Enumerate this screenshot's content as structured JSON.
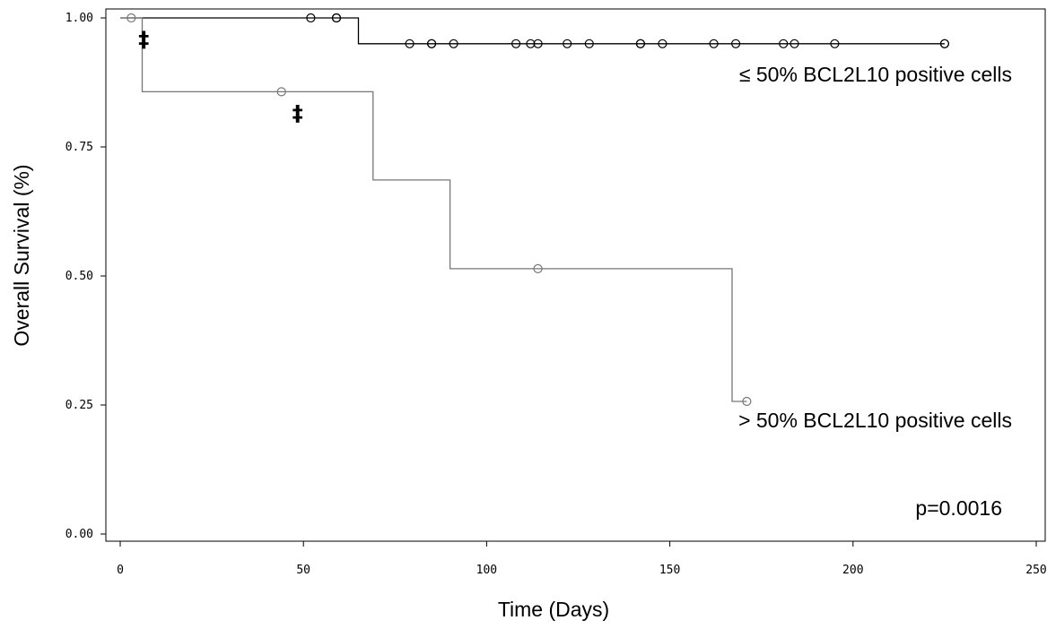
{
  "chart_data": {
    "type": "line",
    "subtype": "kaplan-meier",
    "xlabel": "Time (Days)",
    "ylabel": "Overall Survival (%)",
    "xlim": [
      0,
      250
    ],
    "ylim": [
      0,
      1
    ],
    "x_ticks": [
      "0",
      "50",
      "100",
      "150",
      "200",
      "250"
    ],
    "y_ticks": [
      "0.00",
      "0.25",
      "0.50",
      "0.75",
      "1.00"
    ],
    "grid": false,
    "series": [
      {
        "name": "≤ 50% BCL2L10 positive cells",
        "color": "#000000",
        "steps": [
          [
            0,
            1.0
          ],
          [
            65,
            1.0
          ],
          [
            65,
            0.95
          ],
          [
            225,
            0.95
          ]
        ],
        "censored": [
          [
            52,
            1.0
          ],
          [
            59,
            1.0
          ],
          [
            59,
            1.0
          ],
          [
            79,
            0.95
          ],
          [
            85,
            0.95
          ],
          [
            85,
            0.95
          ],
          [
            91,
            0.95
          ],
          [
            108,
            0.95
          ],
          [
            112,
            0.95
          ],
          [
            114,
            0.95
          ],
          [
            122,
            0.95
          ],
          [
            128,
            0.95
          ],
          [
            142,
            0.95
          ],
          [
            142,
            0.95
          ],
          [
            148,
            0.95
          ],
          [
            162,
            0.95
          ],
          [
            168,
            0.95
          ],
          [
            181,
            0.95
          ],
          [
            184,
            0.95
          ],
          [
            195,
            0.95
          ],
          [
            225,
            0.95
          ],
          [
            225,
            0.95
          ]
        ]
      },
      {
        "name": "> 50% BCL2L10 positive cells",
        "color": "#777777",
        "steps": [
          [
            0,
            1.0
          ],
          [
            6,
            1.0
          ],
          [
            6,
            0.857
          ],
          [
            69,
            0.857
          ],
          [
            69,
            0.686
          ],
          [
            90,
            0.686
          ],
          [
            90,
            0.514
          ],
          [
            167,
            0.514
          ],
          [
            167,
            0.257
          ],
          [
            171,
            0.257
          ]
        ],
        "censored": [
          [
            3,
            1.0
          ],
          [
            44,
            0.857
          ],
          [
            114,
            0.514
          ],
          [
            171,
            0.257
          ]
        ]
      }
    ],
    "markers": [
      {
        "text": "‡",
        "x": 3,
        "y": 1.0
      },
      {
        "text": "‡",
        "x": 45,
        "y": 0.857
      }
    ],
    "annotations": {
      "low_group_label": "≤ 50% BCL2L10 positive cells",
      "high_group_label": "> 50% BCL2L10 positive cells",
      "p_value": "p=0.0016"
    }
  }
}
